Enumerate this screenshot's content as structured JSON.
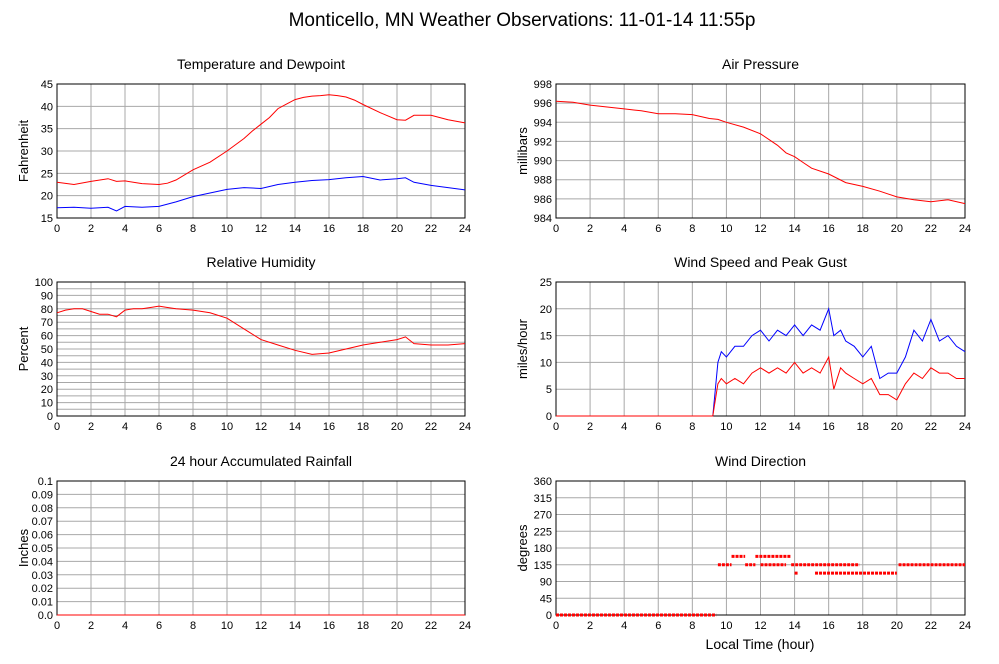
{
  "page_title": "Monticello, MN Weather Observations: 11-01-14 11:55p",
  "xlabel_bottom": "Local Time (hour)",
  "colors": {
    "red": "#ff0000",
    "blue": "#0000ff",
    "grid": "#a8a8a8"
  },
  "chart_data": [
    {
      "id": "temperature",
      "type": "line",
      "title": "Temperature and Dewpoint",
      "ylabel": "Fahrenheit",
      "xlim": [
        0,
        24
      ],
      "ylim": [
        15,
        45
      ],
      "xticks": [
        0,
        2,
        4,
        6,
        8,
        10,
        12,
        14,
        16,
        18,
        20,
        22,
        24
      ],
      "yticks": [
        15,
        20,
        25,
        30,
        35,
        40,
        45
      ],
      "grid": true,
      "series": [
        {
          "color": "#ff0000",
          "x": [
            0,
            1,
            2,
            3,
            3.5,
            4,
            5,
            6,
            6.5,
            7,
            8,
            9,
            10,
            11,
            11.5,
            12,
            12.5,
            13,
            13.5,
            14,
            14.5,
            15,
            15.5,
            16,
            16.5,
            17,
            17.5,
            18,
            19,
            20,
            20.5,
            21,
            22,
            23,
            24
          ],
          "y": [
            23,
            22.5,
            23.2,
            23.8,
            23.2,
            23.3,
            22.7,
            22.5,
            22.8,
            23.5,
            25.8,
            27.5,
            30,
            32.8,
            34.5,
            36,
            37.5,
            39.5,
            40.5,
            41.5,
            42,
            42.3,
            42.4,
            42.6,
            42.4,
            42.1,
            41.4,
            40.4,
            38.6,
            37,
            36.9,
            38,
            38,
            37,
            36.3
          ]
        },
        {
          "color": "#0000ff",
          "x": [
            0,
            1,
            2,
            3,
            3.5,
            4,
            5,
            6,
            7,
            8,
            9,
            10,
            11,
            12,
            13,
            14,
            15,
            16,
            17,
            18,
            19,
            20,
            20.5,
            21,
            22,
            23,
            24
          ],
          "y": [
            17.3,
            17.4,
            17.2,
            17.4,
            16.6,
            17.6,
            17.4,
            17.6,
            18.6,
            19.8,
            20.6,
            21.4,
            21.8,
            21.6,
            22.5,
            23,
            23.4,
            23.6,
            24,
            24.3,
            23.5,
            23.8,
            24,
            23,
            22.3,
            21.8,
            21.3
          ]
        }
      ]
    },
    {
      "id": "pressure",
      "type": "line",
      "title": "Air Pressure",
      "ylabel": "millibars",
      "xlim": [
        0,
        24
      ],
      "ylim": [
        984,
        998
      ],
      "xticks": [
        0,
        2,
        4,
        6,
        8,
        10,
        12,
        14,
        16,
        18,
        20,
        22,
        24
      ],
      "yticks": [
        984,
        986,
        988,
        990,
        992,
        994,
        996,
        998
      ],
      "grid": true,
      "series": [
        {
          "color": "#ff0000",
          "x": [
            0,
            1,
            2,
            3,
            4,
            5,
            6,
            7,
            8,
            9,
            9.5,
            10,
            11,
            12,
            13,
            13.5,
            14,
            14.5,
            15,
            16,
            17,
            18,
            19,
            20,
            21,
            22,
            23,
            24
          ],
          "y": [
            996.2,
            996.1,
            995.8,
            995.6,
            995.4,
            995.2,
            994.9,
            994.9,
            994.8,
            994.4,
            994.3,
            994,
            993.5,
            992.8,
            991.6,
            990.8,
            990.4,
            989.8,
            989.2,
            988.6,
            987.7,
            987.3,
            986.8,
            986.2,
            985.9,
            985.7,
            985.9,
            985.5
          ]
        }
      ]
    },
    {
      "id": "humidity",
      "type": "line",
      "title": "Relative Humidity",
      "ylabel": "Percent",
      "xlim": [
        0,
        24
      ],
      "ylim": [
        0,
        100
      ],
      "xticks": [
        0,
        2,
        4,
        6,
        8,
        10,
        12,
        14,
        16,
        18,
        20,
        22,
        24
      ],
      "yticks": [
        0,
        5,
        10,
        15,
        20,
        25,
        30,
        35,
        40,
        45,
        50,
        55,
        60,
        65,
        70,
        75,
        80,
        85,
        90,
        95,
        100
      ],
      "ytick_labels": [
        "0",
        "10",
        "20",
        "30",
        "40",
        "50",
        "60",
        "70",
        "80",
        "90",
        "100"
      ],
      "grid": true,
      "series": [
        {
          "color": "#ff0000",
          "x": [
            0,
            0.5,
            1,
            1.5,
            2,
            2.5,
            3,
            3.5,
            4,
            4.5,
            5,
            5.5,
            6,
            6.5,
            7,
            8,
            9,
            10,
            11,
            12,
            13,
            14,
            15,
            16,
            17,
            18,
            19,
            20,
            20.5,
            21,
            22,
            23,
            24
          ],
          "y": [
            77,
            79,
            80,
            80,
            78,
            76,
            76,
            74,
            79,
            80,
            80,
            81,
            82,
            81,
            80,
            79,
            77,
            73,
            65,
            57,
            53,
            49,
            46,
            47,
            50,
            53,
            55,
            57,
            59,
            54,
            53,
            53,
            54
          ]
        }
      ]
    },
    {
      "id": "wind_speed",
      "type": "line",
      "title": "Wind Speed and Peak Gust",
      "ylabel": "miles/hour",
      "xlim": [
        0,
        24
      ],
      "ylim": [
        0,
        25
      ],
      "xticks": [
        0,
        2,
        4,
        6,
        8,
        10,
        12,
        14,
        16,
        18,
        20,
        22,
        24
      ],
      "yticks": [
        0,
        5,
        10,
        15,
        20,
        25
      ],
      "grid": true,
      "series": [
        {
          "color": "#0000ff",
          "x": [
            0,
            9.2,
            9.5,
            9.7,
            10,
            10.5,
            11,
            11.5,
            12,
            12.5,
            13,
            13.5,
            14,
            14.5,
            15,
            15.5,
            16,
            16.3,
            16.7,
            17,
            17.5,
            18,
            18.5,
            19,
            19.5,
            20,
            20.5,
            21,
            21.5,
            22,
            22.5,
            23,
            23.5,
            24
          ],
          "y": [
            0,
            0,
            10,
            12,
            11,
            13,
            13,
            15,
            16,
            14,
            16,
            15,
            17,
            15,
            17,
            16,
            20,
            15,
            16,
            14,
            13,
            11,
            13,
            7,
            8,
            8,
            11,
            16,
            14,
            18,
            14,
            15,
            13,
            12
          ]
        },
        {
          "color": "#ff0000",
          "x": [
            0,
            9.2,
            9.5,
            9.7,
            10,
            10.5,
            11,
            11.5,
            12,
            12.5,
            13,
            13.5,
            14,
            14.5,
            15,
            15.5,
            16,
            16.3,
            16.7,
            17,
            17.5,
            18,
            18.5,
            19,
            19.5,
            20,
            20.5,
            21,
            21.5,
            22,
            22.5,
            23,
            23.5,
            24
          ],
          "y": [
            0,
            0,
            6,
            7,
            6,
            7,
            6,
            8,
            9,
            8,
            9,
            8,
            10,
            8,
            9,
            8,
            11,
            5,
            9,
            8,
            7,
            6,
            7,
            4,
            4,
            3,
            6,
            8,
            7,
            9,
            8,
            8,
            7,
            7
          ]
        }
      ]
    },
    {
      "id": "rainfall",
      "type": "line",
      "title": "24 hour Accumulated Rainfall",
      "ylabel": "Inches",
      "xlim": [
        0,
        24
      ],
      "ylim": [
        0,
        0.1
      ],
      "xticks": [
        0,
        2,
        4,
        6,
        8,
        10,
        12,
        14,
        16,
        18,
        20,
        22,
        24
      ],
      "yticks": [
        0,
        0.01,
        0.02,
        0.03,
        0.04,
        0.05,
        0.06,
        0.07,
        0.08,
        0.09,
        0.1
      ],
      "ytick_labels": [
        "0.0",
        "0.01",
        "0.02",
        "0.03",
        "0.04",
        "0.05",
        "0.06",
        "0.07",
        "0.08",
        "0.09",
        "0.1"
      ],
      "grid": true,
      "series": [
        {
          "color": "#ff0000",
          "x": [
            0,
            24
          ],
          "y": [
            0,
            0
          ]
        }
      ]
    },
    {
      "id": "wind_direction",
      "type": "scatter",
      "title": "Wind Direction",
      "ylabel": "degrees",
      "xlabel": "Local Time (hour)",
      "xlim": [
        0,
        24
      ],
      "ylim": [
        0,
        360
      ],
      "xticks": [
        0,
        2,
        4,
        6,
        8,
        10,
        12,
        14,
        16,
        18,
        20,
        22,
        24
      ],
      "yticks": [
        0,
        45,
        90,
        135,
        180,
        225,
        270,
        315,
        360
      ],
      "grid": true,
      "segments": [
        {
          "x0": 0,
          "x1": 9.4,
          "y": 0
        },
        {
          "x0": 9.5,
          "x1": 10.3,
          "y": 135
        },
        {
          "x0": 10.3,
          "x1": 11.1,
          "y": 157.5
        },
        {
          "x0": 11.1,
          "x1": 11.7,
          "y": 135
        },
        {
          "x0": 11.7,
          "x1": 13.8,
          "y": 157.5
        },
        {
          "x0": 12.0,
          "x1": 13.5,
          "y": 135
        },
        {
          "x0": 13.8,
          "x1": 17.8,
          "y": 135
        },
        {
          "x0": 14.0,
          "x1": 14.2,
          "y": 112.5
        },
        {
          "x0": 15.2,
          "x1": 20.0,
          "y": 112.5
        },
        {
          "x0": 20.1,
          "x1": 24,
          "y": 135
        }
      ]
    }
  ]
}
